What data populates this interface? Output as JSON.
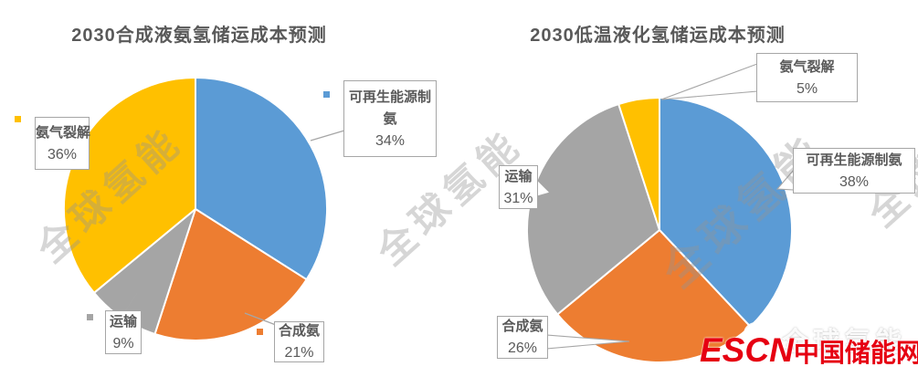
{
  "palette": {
    "blue": "#5B9BD5",
    "orange": "#ED7D31",
    "gray": "#A5A5A5",
    "yellow": "#FFC000",
    "brand_red": "#E60012",
    "label_text": "#595959"
  },
  "chart_data": [
    {
      "type": "pie",
      "title": "2030合成液氨氢储运成本预测",
      "labels": [
        "可再生能源制氨",
        "合成氨",
        "运输",
        "氨气裂解"
      ],
      "values": [
        34,
        21,
        9,
        36
      ],
      "unit": "%",
      "colors": [
        "#5B9BD5",
        "#ED7D31",
        "#A5A5A5",
        "#FFC000"
      ],
      "start_angle_deg": 0,
      "direction": "clockwise",
      "legend": "callout-boxes",
      "callouts": [
        {
          "name": "renewable-ammonia",
          "lines": [
            "可再生能源制",
            "氨"
          ],
          "value": "34%",
          "marker": "blue"
        },
        {
          "name": "ammonia-cracking",
          "lines": [
            "氨气裂解"
          ],
          "value": "36%",
          "marker": "yellow"
        },
        {
          "name": "transport",
          "lines": [
            "运输"
          ],
          "value": "9%",
          "marker": "gray"
        },
        {
          "name": "ammonia-synthesis",
          "lines": [
            "合成氨"
          ],
          "value": "21%",
          "marker": "orange"
        }
      ]
    },
    {
      "type": "pie",
      "title": "2030低温液化氢储运成本预测",
      "labels": [
        "可再生能源制氨",
        "合成氨",
        "运输",
        "氨气裂解"
      ],
      "values": [
        38,
        26,
        31,
        5
      ],
      "unit": "%",
      "colors": [
        "#5B9BD5",
        "#ED7D31",
        "#A5A5A5",
        "#FFC000"
      ],
      "start_angle_deg": 0,
      "direction": "clockwise",
      "legend": "callout-boxes",
      "callouts": [
        {
          "name": "ammonia-cracking",
          "lines": [
            "氨气裂解"
          ],
          "value": "5%"
        },
        {
          "name": "renewable-ammonia",
          "lines": [
            "可再生能源制氨"
          ],
          "value": "38%"
        },
        {
          "name": "transport",
          "lines": [
            "运输"
          ],
          "value": "31%"
        },
        {
          "name": "ammonia-synthesis",
          "lines": [
            "合成氨"
          ],
          "value": "26%"
        }
      ]
    }
  ],
  "watermark": {
    "diagonal_text": "全球氢能",
    "footer_text": "全球氢能"
  },
  "brand": {
    "escn": "ESCN",
    "site_name": "中国储能网"
  }
}
